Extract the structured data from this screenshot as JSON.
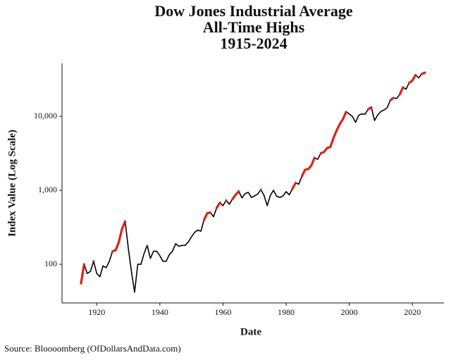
{
  "chart_data": {
    "type": "line",
    "title": "Dow Jones Industrial Average",
    "subtitle": "All-Time Highs",
    "period": "1915-2024",
    "x_label": "Date",
    "y_label": "Index Value (Log Scale)",
    "source": "Source:  Bloooomberg (OfDollarsAndData.com)",
    "log_scale_y": true,
    "xlim": [
      1909,
      2030
    ],
    "ylim": [
      30,
      52000
    ],
    "xticks": [
      1920,
      1940,
      1960,
      1980,
      2000,
      2020
    ],
    "yticks": [
      100,
      {
        "value": 1000,
        "label": "1,000"
      },
      {
        "value": 10000,
        "label": "10,000"
      }
    ],
    "x": [
      1915,
      1916,
      1917,
      1918,
      1919,
      1920,
      1921,
      1922,
      1923,
      1924,
      1925,
      1926,
      1927,
      1928,
      1929,
      1930,
      1931,
      1932,
      1933,
      1934,
      1935,
      1936,
      1937,
      1938,
      1939,
      1940,
      1941,
      1942,
      1943,
      1944,
      1945,
      1946,
      1947,
      1948,
      1949,
      1950,
      1951,
      1952,
      1953,
      1954,
      1955,
      1956,
      1957,
      1958,
      1959,
      1960,
      1961,
      1962,
      1963,
      1964,
      1965,
      1966,
      1967,
      1968,
      1969,
      1970,
      1971,
      1972,
      1973,
      1974,
      1975,
      1976,
      1977,
      1978,
      1979,
      1980,
      1981,
      1982,
      1983,
      1984,
      1985,
      1986,
      1987,
      1988,
      1989,
      1990,
      1991,
      1992,
      1993,
      1994,
      1995,
      1996,
      1997,
      1998,
      1999,
      2000,
      2001,
      2002,
      2003,
      2004,
      2005,
      2006,
      2007,
      2008,
      2009,
      2010,
      2011,
      2012,
      2013,
      2014,
      2015,
      2016,
      2017,
      2018,
      2019,
      2020,
      2021,
      2022,
      2023,
      2024
    ],
    "series": [
      {
        "color": "#000000",
        "values": [
          55,
          100,
          75,
          80,
          110,
          75,
          68,
          95,
          90,
          110,
          150,
          155,
          200,
          300,
          380,
          165,
          80,
          42,
          100,
          100,
          140,
          180,
          120,
          150,
          150,
          130,
          110,
          110,
          135,
          150,
          190,
          175,
          180,
          180,
          200,
          235,
          270,
          290,
          280,
          400,
          490,
          500,
          440,
          580,
          680,
          620,
          730,
          650,
          760,
          870,
          970,
          790,
          900,
          940,
          800,
          840,
          890,
          1020,
          850,
          620,
          850,
          1000,
          830,
          800,
          840,
          960,
          870,
          1050,
          1260,
          1210,
          1550,
          1900,
          1940,
          2170,
          2750,
          2630,
          3170,
          3300,
          3750,
          3830,
          5100,
          6450,
          7900,
          9200,
          11500,
          10800,
          10000,
          8300,
          10400,
          10800,
          10700,
          12460,
          13260,
          8780,
          10400,
          11600,
          12200,
          13100,
          16500,
          17800,
          17400,
          19800,
          24700,
          23300,
          28500,
          30600,
          36300,
          33100,
          37700,
          39000
        ]
      },
      {
        "color": "#e0201b",
        "values": [
          55,
          100,
          null,
          null,
          110,
          null,
          null,
          null,
          null,
          null,
          150,
          155,
          200,
          300,
          380,
          null,
          null,
          null,
          null,
          null,
          null,
          null,
          null,
          null,
          null,
          null,
          null,
          null,
          null,
          null,
          null,
          null,
          null,
          null,
          null,
          null,
          null,
          null,
          null,
          400,
          490,
          500,
          null,
          580,
          680,
          null,
          730,
          null,
          760,
          870,
          970,
          null,
          null,
          null,
          null,
          null,
          null,
          1020,
          null,
          null,
          null,
          null,
          null,
          null,
          null,
          null,
          null,
          1050,
          1260,
          null,
          1550,
          1900,
          1940,
          2170,
          2750,
          null,
          3170,
          3300,
          3750,
          3830,
          5100,
          6450,
          7900,
          9200,
          11500,
          null,
          null,
          null,
          null,
          null,
          null,
          12460,
          13260,
          null,
          null,
          null,
          null,
          null,
          16500,
          17800,
          null,
          19800,
          24700,
          null,
          28500,
          30600,
          36300,
          null,
          37700,
          39000
        ]
      }
    ]
  }
}
